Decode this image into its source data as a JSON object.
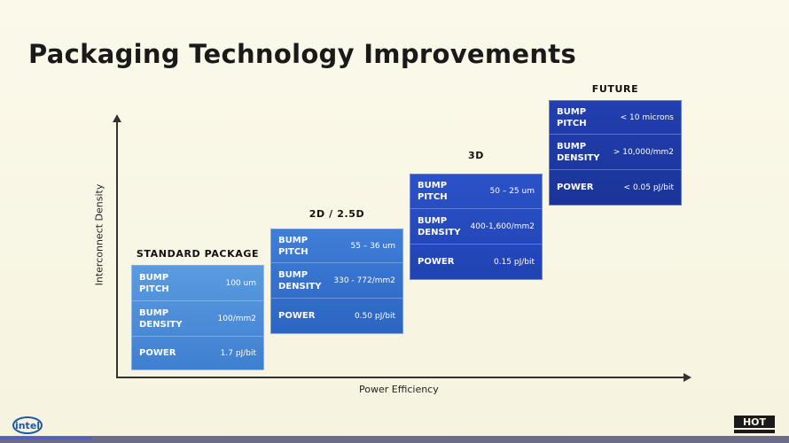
{
  "title": "Packaging Technology Improvements",
  "axes": {
    "y_label": "Interconnect Density",
    "x_label": "Power Efficiency"
  },
  "stages": [
    {
      "name": "STANDARD PACKAGE",
      "color_top": "#5b9be0",
      "color_bottom": "#3f7fd0",
      "rows": [
        {
          "label": "BUMP\nPITCH",
          "value": "100 um"
        },
        {
          "label": "BUMP\nDENSITY",
          "value": "100/mm2"
        },
        {
          "label": "POWER",
          "value": "1.7  pJ/bit"
        }
      ]
    },
    {
      "name": "2D / 2.5D",
      "color_top": "#3f7fd8",
      "color_bottom": "#2c64c2",
      "rows": [
        {
          "label": "BUMP\nPITCH",
          "value": "55 – 36 um"
        },
        {
          "label": "BUMP\nDENSITY",
          "value": "330 - 772/mm2"
        },
        {
          "label": "POWER",
          "value": "0.50  pJ/bit"
        }
      ]
    },
    {
      "name": "3D",
      "color_top": "#2c52c8",
      "color_bottom": "#2043b2",
      "rows": [
        {
          "label": "BUMP\nPITCH",
          "value": "50 – 25 um"
        },
        {
          "label": "BUMP\nDENSITY",
          "value": "400-1,600/mm2"
        },
        {
          "label": "POWER",
          "value": "0.15  pJ/bit"
        }
      ]
    },
    {
      "name": "FUTURE",
      "color_top": "#223fb0",
      "color_bottom": "#1a3498",
      "rows": [
        {
          "label": "BUMP\nPITCH",
          "value": "< 10 microns"
        },
        {
          "label": "BUMP\nDENSITY",
          "value": "> 10,000/mm2"
        },
        {
          "label": "POWER",
          "value": "< 0.05 pJ/bit"
        }
      ]
    }
  ],
  "logos": {
    "left": "intel",
    "right": "HOT"
  }
}
